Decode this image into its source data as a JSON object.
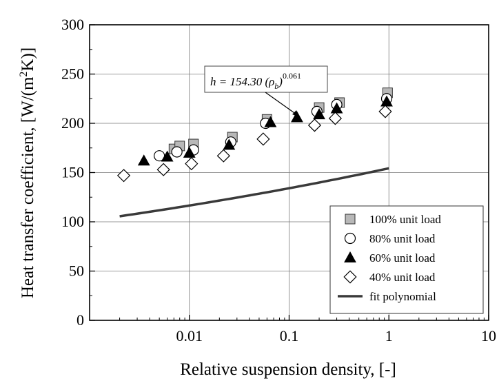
{
  "chart_data": {
    "type": "scatter",
    "xlabel": "Relative suspension density, [-]",
    "ylabel_main": "Heat transfer coefficient, [W/(m",
    "ylabel_sup": "2",
    "ylabel_end": "K)]",
    "xscale": "log",
    "xlim": [
      0.001,
      10
    ],
    "ylim": [
      0,
      300
    ],
    "x_ticks": [
      0.01,
      0.1,
      1,
      10
    ],
    "x_tick_labels": [
      "0.01",
      "0.1",
      "1",
      "10"
    ],
    "y_ticks": [
      0,
      50,
      100,
      150,
      200,
      250,
      300
    ],
    "y_tick_labels": [
      "0",
      "50",
      "100",
      "150",
      "200",
      "250",
      "300"
    ],
    "grid": true,
    "legend_position": "bottom-right",
    "series": [
      {
        "name": "100% unit load",
        "marker": "square",
        "color": "#b8b8b8",
        "x": [
          0.007,
          0.008,
          0.011,
          0.027,
          0.06,
          0.2,
          0.32,
          0.97
        ],
        "y": [
          174,
          177,
          179,
          186,
          204,
          216,
          221,
          231
        ]
      },
      {
        "name": "80% unit load",
        "marker": "circle",
        "color": "#ffffff",
        "x": [
          0.005,
          0.0075,
          0.011,
          0.026,
          0.058,
          0.19,
          0.3,
          0.95
        ],
        "y": [
          167,
          171,
          173,
          181,
          200,
          212,
          219,
          225
        ]
      },
      {
        "name": "60% unit load",
        "marker": "triangle",
        "color": "#000000",
        "x": [
          0.0035,
          0.006,
          0.01,
          0.025,
          0.065,
          0.12,
          0.2,
          0.3,
          0.95
        ],
        "y": [
          162,
          166,
          170,
          178,
          201,
          206,
          209,
          215,
          222
        ]
      },
      {
        "name": "40% unit load",
        "marker": "diamond",
        "color": "#ffffff",
        "x": [
          0.0022,
          0.0055,
          0.0105,
          0.022,
          0.055,
          0.18,
          0.29,
          0.92
        ],
        "y": [
          147,
          153,
          159,
          167,
          184,
          198,
          205,
          212
        ]
      },
      {
        "name": "fit polynomial",
        "marker": "line",
        "color": "#3a3a3a",
        "coef": 154.3,
        "exponent": 0.061,
        "x_range": [
          0.002,
          1.0
        ]
      }
    ],
    "annotation": {
      "prefix": "h = 154.30 (ρ",
      "subscript": "b",
      "suffix": ")",
      "superscript": "0.061"
    }
  }
}
